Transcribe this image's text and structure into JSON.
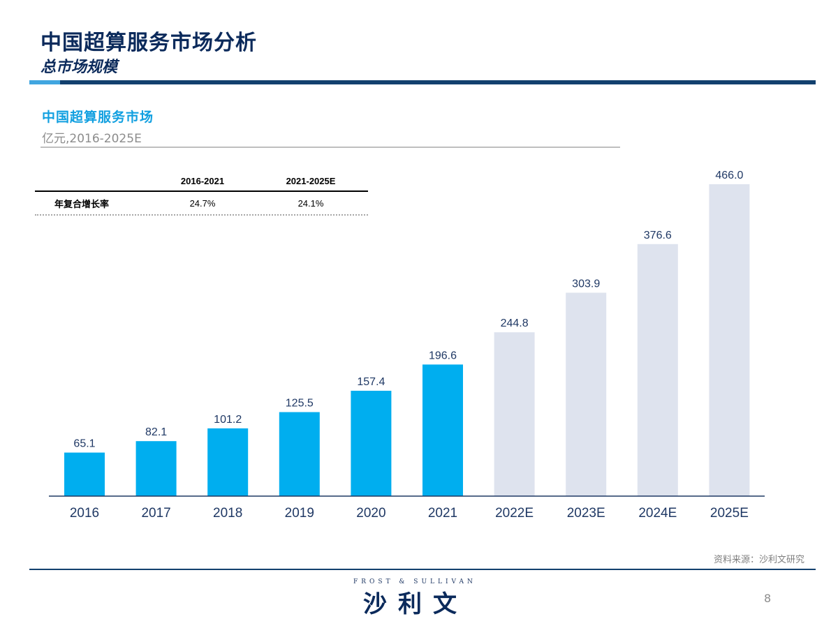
{
  "header": {
    "title": "中国超算服务市场分析",
    "subtitle": "总市场规模"
  },
  "chart_header": {
    "title": "中国超算服务市场",
    "unit": "亿元,2016-2025E"
  },
  "cagr_table": {
    "period_1": "2016-2021",
    "period_2": "2021-2025E",
    "row_label": "年复合增长率",
    "value_1": "24.7%",
    "value_2": "24.1%"
  },
  "chart_data": {
    "type": "bar",
    "title": "中国超算服务市场",
    "ylabel": "亿元",
    "categories": [
      "2016",
      "2017",
      "2018",
      "2019",
      "2020",
      "2021",
      "2022E",
      "2023E",
      "2024E",
      "2025E"
    ],
    "values": [
      65.1,
      82.1,
      101.2,
      125.5,
      157.4,
      196.6,
      244.8,
      303.9,
      376.6,
      466.0
    ],
    "value_labels": [
      "65.1",
      "82.1",
      "101.2",
      "125.5",
      "157.4",
      "196.6",
      "244.8",
      "303.9",
      "376.6",
      "466.0"
    ],
    "forecast_from_index": 6,
    "ylim": [
      0,
      466.0
    ],
    "grid": false,
    "colors": {
      "actual": "#00aeef",
      "forecast": "#dee3ee",
      "axis": "#1f3864",
      "label": "#1f3864"
    }
  },
  "footer": {
    "source": "资料来源：沙利文研究",
    "brand_en": "FROST & SULLIVAN",
    "brand_cn": "沙利文",
    "page_number": "8"
  }
}
